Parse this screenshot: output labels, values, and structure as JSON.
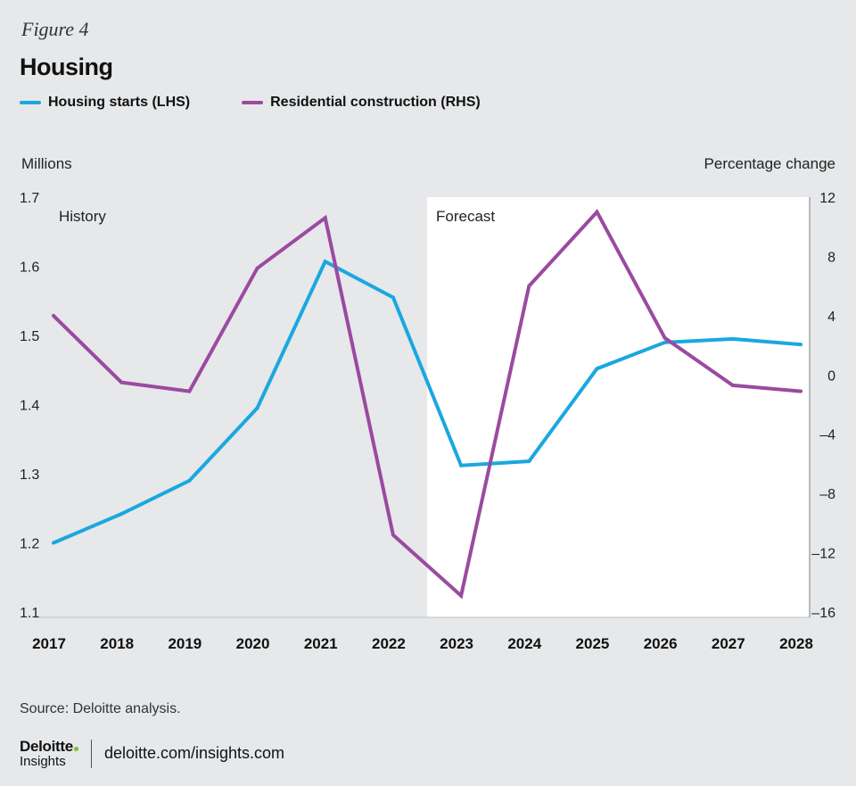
{
  "figure_label": "Figure 4",
  "footer": {
    "source": "Source: Deloitte analysis.",
    "logo_top": "Deloitte",
    "logo_bottom": "Insights",
    "url": "deloitte.com/insights.com"
  },
  "colors": {
    "housing_starts": "#1ba7e0",
    "residential_construction": "#9b4aa0",
    "background": "#e6e8ea",
    "forecast_region": "#ffffff"
  },
  "chart_data": {
    "type": "line",
    "title": "Housing",
    "categories": [
      "2017",
      "2018",
      "2019",
      "2020",
      "2021",
      "2022",
      "2023",
      "2024",
      "2025",
      "2026",
      "2027",
      "2028"
    ],
    "series": [
      {
        "name": "Housing starts (LHS)",
        "axis": "left",
        "values": [
          1.2,
          1.242,
          1.29,
          1.395,
          1.607,
          1.555,
          1.312,
          1.318,
          1.452,
          1.49,
          1.495,
          1.487
        ]
      },
      {
        "name": "Residential construction (RHS)",
        "axis": "right",
        "values": [
          4.0,
          -0.5,
          -1.1,
          7.2,
          10.6,
          -10.8,
          -14.9,
          6.0,
          11.0,
          2.5,
          -0.7,
          -1.1
        ]
      }
    ],
    "left_axis": {
      "label": "Millions",
      "min": 1.1,
      "max": 1.7,
      "ticks": [
        "1.1",
        "1.2",
        "1.3",
        "1.4",
        "1.5",
        "1.6",
        "1.7"
      ]
    },
    "right_axis": {
      "label": "Percentage change",
      "min": -16,
      "max": 12,
      "ticks": [
        "–16",
        "–12",
        "–8",
        "–4",
        "0",
        "4",
        "8",
        "12"
      ]
    },
    "annotations": {
      "history": "History",
      "forecast": "Forecast"
    },
    "forecast_start_between": [
      "2022",
      "2023"
    ]
  }
}
